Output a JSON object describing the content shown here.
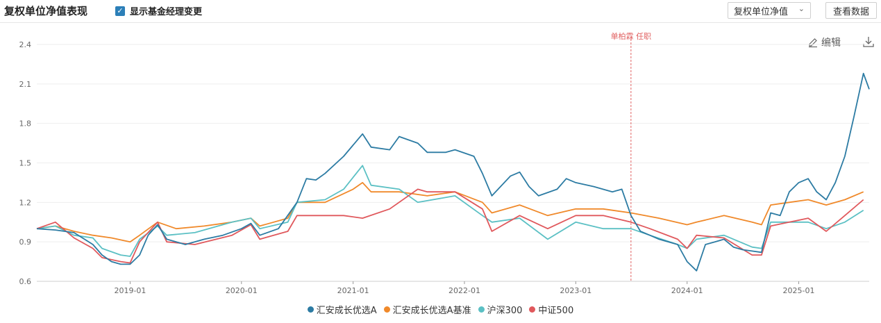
{
  "header": {
    "title": "复权单位净值表现",
    "checkbox_label": "显示基金经理变更",
    "select_value": "复权单位净值",
    "view_data_button": "查看数据"
  },
  "toolbar": {
    "edit_label": "编辑",
    "download_icon": "download-icon",
    "edit_icon": "pencil-icon"
  },
  "chart_data": {
    "type": "line",
    "ylim": [
      0.6,
      2.4
    ],
    "yticks": [
      0.6,
      0.9,
      1.2,
      1.5,
      1.8,
      2.1,
      2.4
    ],
    "ytick_labels": [
      "0.6",
      "0.9",
      "1.2",
      "1.5",
      "1.8",
      "2.1",
      "2.4"
    ],
    "xlim": [
      "2018-03-01",
      "2025-08-20"
    ],
    "xticks": [
      "2019-01",
      "2020-01",
      "2021-01",
      "2022-01",
      "2023-01",
      "2024-01",
      "2025-01"
    ],
    "grid": true,
    "legend_position": "bottom-center",
    "annotation": {
      "label": "单柏霖 任职",
      "date": "2023-07-01",
      "color": "#e06060"
    },
    "series": [
      {
        "name": "汇安成长优选A",
        "color": "#2c7ba3",
        "points": [
          [
            "2018-03",
            1.0
          ],
          [
            "2018-05",
            0.99
          ],
          [
            "2018-07",
            0.97
          ],
          [
            "2018-09",
            0.88
          ],
          [
            "2018-10",
            0.8
          ],
          [
            "2018-11",
            0.75
          ],
          [
            "2018-12",
            0.73
          ],
          [
            "2019-01",
            0.73
          ],
          [
            "2019-02",
            0.8
          ],
          [
            "2019-03",
            0.95
          ],
          [
            "2019-04",
            1.03
          ],
          [
            "2019-05",
            0.92
          ],
          [
            "2019-07",
            0.88
          ],
          [
            "2019-09",
            0.92
          ],
          [
            "2019-11",
            0.95
          ],
          [
            "2020-01",
            1.0
          ],
          [
            "2020-02",
            1.04
          ],
          [
            "2020-03",
            0.95
          ],
          [
            "2020-05",
            1.0
          ],
          [
            "2020-07",
            1.2
          ],
          [
            "2020-08",
            1.38
          ],
          [
            "2020-09",
            1.37
          ],
          [
            "2020-10",
            1.42
          ],
          [
            "2020-12",
            1.55
          ],
          [
            "2021-02",
            1.72
          ],
          [
            "2021-03",
            1.62
          ],
          [
            "2021-05",
            1.6
          ],
          [
            "2021-06",
            1.7
          ],
          [
            "2021-08",
            1.65
          ],
          [
            "2021-09",
            1.58
          ],
          [
            "2021-11",
            1.58
          ],
          [
            "2021-12",
            1.6
          ],
          [
            "2022-02",
            1.55
          ],
          [
            "2022-03",
            1.42
          ],
          [
            "2022-04",
            1.25
          ],
          [
            "2022-06",
            1.4
          ],
          [
            "2022-07",
            1.43
          ],
          [
            "2022-08",
            1.32
          ],
          [
            "2022-09",
            1.25
          ],
          [
            "2022-11",
            1.3
          ],
          [
            "2022-12",
            1.38
          ],
          [
            "2023-01",
            1.35
          ],
          [
            "2023-03",
            1.32
          ],
          [
            "2023-05",
            1.28
          ],
          [
            "2023-06",
            1.3
          ],
          [
            "2023-07",
            1.1
          ],
          [
            "2023-08",
            0.98
          ],
          [
            "2023-09",
            0.95
          ],
          [
            "2023-10",
            0.92
          ],
          [
            "2023-11",
            0.9
          ],
          [
            "2023-12",
            0.88
          ],
          [
            "2024-01",
            0.75
          ],
          [
            "2024-02",
            0.68
          ],
          [
            "2024-03",
            0.88
          ],
          [
            "2024-04",
            0.9
          ],
          [
            "2024-05",
            0.92
          ],
          [
            "2024-06",
            0.86
          ],
          [
            "2024-07",
            0.84
          ],
          [
            "2024-08",
            0.83
          ],
          [
            "2024-09",
            0.82
          ],
          [
            "2024-10",
            1.12
          ],
          [
            "2024-11",
            1.1
          ],
          [
            "2024-12",
            1.28
          ],
          [
            "2025-01",
            1.35
          ],
          [
            "2025-02",
            1.38
          ],
          [
            "2025-03",
            1.28
          ],
          [
            "2025-04",
            1.22
          ],
          [
            "2025-05",
            1.35
          ],
          [
            "2025-06",
            1.55
          ],
          [
            "2025-07",
            1.85
          ],
          [
            "2025-08",
            2.18
          ],
          [
            "2025-08-20",
            2.06
          ]
        ]
      },
      {
        "name": "汇安成长优选A基准",
        "color": "#f0892a",
        "points": [
          [
            "2018-03",
            1.0
          ],
          [
            "2018-05",
            1.02
          ],
          [
            "2018-07",
            0.98
          ],
          [
            "2018-09",
            0.95
          ],
          [
            "2018-11",
            0.93
          ],
          [
            "2019-01",
            0.9
          ],
          [
            "2019-02",
            0.95
          ],
          [
            "2019-04",
            1.05
          ],
          [
            "2019-06",
            1.0
          ],
          [
            "2019-09",
            1.02
          ],
          [
            "2019-12",
            1.05
          ],
          [
            "2020-02",
            1.08
          ],
          [
            "2020-03",
            1.02
          ],
          [
            "2020-06",
            1.08
          ],
          [
            "2020-07",
            1.2
          ],
          [
            "2020-10",
            1.2
          ],
          [
            "2021-01",
            1.3
          ],
          [
            "2021-02",
            1.35
          ],
          [
            "2021-03",
            1.28
          ],
          [
            "2021-06",
            1.28
          ],
          [
            "2021-09",
            1.25
          ],
          [
            "2021-12",
            1.28
          ],
          [
            "2022-03",
            1.2
          ],
          [
            "2022-04",
            1.12
          ],
          [
            "2022-07",
            1.18
          ],
          [
            "2022-10",
            1.1
          ],
          [
            "2023-01",
            1.15
          ],
          [
            "2023-04",
            1.15
          ],
          [
            "2023-07",
            1.12
          ],
          [
            "2023-10",
            1.08
          ],
          [
            "2024-01",
            1.03
          ],
          [
            "2024-02",
            1.05
          ],
          [
            "2024-05",
            1.1
          ],
          [
            "2024-08",
            1.05
          ],
          [
            "2024-09",
            1.03
          ],
          [
            "2024-10",
            1.18
          ],
          [
            "2024-12",
            1.2
          ],
          [
            "2025-02",
            1.22
          ],
          [
            "2025-04",
            1.18
          ],
          [
            "2025-06",
            1.22
          ],
          [
            "2025-08",
            1.28
          ]
        ]
      },
      {
        "name": "沪深300",
        "color": "#5bc0c4",
        "points": [
          [
            "2018-03",
            1.0
          ],
          [
            "2018-05",
            1.02
          ],
          [
            "2018-07",
            0.95
          ],
          [
            "2018-09",
            0.93
          ],
          [
            "2018-10",
            0.85
          ],
          [
            "2018-12",
            0.8
          ],
          [
            "2019-01",
            0.79
          ],
          [
            "2019-02",
            0.92
          ],
          [
            "2019-04",
            1.02
          ],
          [
            "2019-05",
            0.95
          ],
          [
            "2019-08",
            0.97
          ],
          [
            "2019-12",
            1.05
          ],
          [
            "2020-02",
            1.08
          ],
          [
            "2020-03",
            1.0
          ],
          [
            "2020-06",
            1.05
          ],
          [
            "2020-07",
            1.2
          ],
          [
            "2020-10",
            1.22
          ],
          [
            "2020-12",
            1.3
          ],
          [
            "2021-02",
            1.48
          ],
          [
            "2021-03",
            1.33
          ],
          [
            "2021-06",
            1.3
          ],
          [
            "2021-08",
            1.2
          ],
          [
            "2021-12",
            1.25
          ],
          [
            "2022-03",
            1.1
          ],
          [
            "2022-04",
            1.05
          ],
          [
            "2022-07",
            1.08
          ],
          [
            "2022-10",
            0.92
          ],
          [
            "2023-01",
            1.05
          ],
          [
            "2023-04",
            1.0
          ],
          [
            "2023-07",
            1.0
          ],
          [
            "2023-09",
            0.95
          ],
          [
            "2023-12",
            0.88
          ],
          [
            "2024-01",
            0.85
          ],
          [
            "2024-02",
            0.92
          ],
          [
            "2024-05",
            0.95
          ],
          [
            "2024-08",
            0.86
          ],
          [
            "2024-09",
            0.85
          ],
          [
            "2024-10",
            1.05
          ],
          [
            "2024-12",
            1.05
          ],
          [
            "2025-02",
            1.05
          ],
          [
            "2025-04",
            1.0
          ],
          [
            "2025-06",
            1.05
          ],
          [
            "2025-08",
            1.14
          ]
        ]
      },
      {
        "name": "中证500",
        "color": "#e0585c",
        "points": [
          [
            "2018-03",
            1.0
          ],
          [
            "2018-05",
            1.05
          ],
          [
            "2018-07",
            0.93
          ],
          [
            "2018-09",
            0.85
          ],
          [
            "2018-10",
            0.78
          ],
          [
            "2018-12",
            0.75
          ],
          [
            "2019-01",
            0.74
          ],
          [
            "2019-02",
            0.9
          ],
          [
            "2019-04",
            1.05
          ],
          [
            "2019-05",
            0.9
          ],
          [
            "2019-08",
            0.88
          ],
          [
            "2019-12",
            0.95
          ],
          [
            "2020-02",
            1.03
          ],
          [
            "2020-03",
            0.92
          ],
          [
            "2020-06",
            0.98
          ],
          [
            "2020-07",
            1.1
          ],
          [
            "2020-10",
            1.1
          ],
          [
            "2020-12",
            1.1
          ],
          [
            "2021-02",
            1.08
          ],
          [
            "2021-05",
            1.15
          ],
          [
            "2021-08",
            1.3
          ],
          [
            "2021-09",
            1.28
          ],
          [
            "2021-12",
            1.28
          ],
          [
            "2022-03",
            1.15
          ],
          [
            "2022-04",
            0.98
          ],
          [
            "2022-07",
            1.1
          ],
          [
            "2022-10",
            1.0
          ],
          [
            "2023-01",
            1.1
          ],
          [
            "2023-04",
            1.1
          ],
          [
            "2023-07",
            1.05
          ],
          [
            "2023-09",
            1.0
          ],
          [
            "2023-12",
            0.92
          ],
          [
            "2024-01",
            0.85
          ],
          [
            "2024-02",
            0.95
          ],
          [
            "2024-05",
            0.93
          ],
          [
            "2024-08",
            0.8
          ],
          [
            "2024-09",
            0.8
          ],
          [
            "2024-10",
            1.02
          ],
          [
            "2024-12",
            1.05
          ],
          [
            "2025-02",
            1.08
          ],
          [
            "2025-04",
            0.98
          ],
          [
            "2025-06",
            1.1
          ],
          [
            "2025-08",
            1.22
          ]
        ]
      }
    ]
  }
}
